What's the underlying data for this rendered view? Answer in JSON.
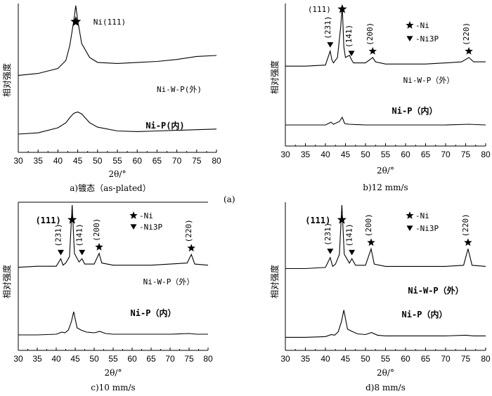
{
  "figure_label": "(a)",
  "chart_data": [
    {
      "type": "line",
      "caption": "a)镀态（as-plated）",
      "xlabel": "2θ/°",
      "ylabel": "相对强度",
      "xlim": [
        30,
        80
      ],
      "xticks": [
        30,
        35,
        40,
        45,
        50,
        55,
        60,
        65,
        70,
        75,
        80
      ],
      "series": [
        {
          "name": "Ni-W-P(外)",
          "x": [
            30,
            35,
            40,
            42,
            43,
            44,
            44.5,
            45,
            46,
            48,
            50,
            55,
            60,
            65,
            70,
            75,
            80
          ],
          "y": [
            0.3,
            0.32,
            0.37,
            0.45,
            0.6,
            0.85,
            1.0,
            0.85,
            0.62,
            0.48,
            0.43,
            0.42,
            0.43,
            0.44,
            0.46,
            0.49,
            0.5
          ]
        },
        {
          "name": "Ni-P(内)",
          "x": [
            30,
            35,
            40,
            42,
            43,
            44,
            45,
            46,
            47,
            48,
            50,
            55,
            60,
            65,
            70,
            75,
            80
          ],
          "y": [
            0.1,
            0.12,
            0.2,
            0.28,
            0.36,
            0.43,
            0.45,
            0.42,
            0.35,
            0.28,
            0.21,
            0.15,
            0.14,
            0.15,
            0.16,
            0.17,
            0.18
          ]
        }
      ],
      "annotations": [
        {
          "text": "Ni(111)",
          "x": 44.5,
          "marker": "star"
        }
      ]
    },
    {
      "type": "line",
      "caption": "b)12 mm/s",
      "xlabel": "2θ/°",
      "ylabel": "相对强度",
      "xlim": [
        30,
        80
      ],
      "xticks": [
        30,
        35,
        40,
        45,
        50,
        55,
        60,
        65,
        70,
        75,
        80
      ],
      "legend": [
        {
          "marker": "star",
          "label": "-Ni"
        },
        {
          "marker": "triangle",
          "label": "-Ni3P"
        }
      ],
      "series": [
        {
          "name": "Ni-W-P（外）",
          "x": [
            30,
            35,
            40,
            41.2,
            41.6,
            42,
            43,
            43.8,
            44.2,
            44.6,
            45,
            46,
            46.5,
            47,
            50,
            51.8,
            52.5,
            55,
            60,
            65,
            70,
            74,
            75.8,
            77,
            80
          ],
          "y": [
            0.44,
            0.44,
            0.45,
            0.58,
            0.5,
            0.47,
            0.52,
            0.8,
            1.0,
            0.62,
            0.52,
            0.54,
            0.5,
            0.47,
            0.47,
            0.52,
            0.48,
            0.46,
            0.46,
            0.46,
            0.47,
            0.48,
            0.52,
            0.48,
            0.48
          ]
        },
        {
          "name": "Ni-P（内）",
          "x": [
            30,
            35,
            40,
            41.4,
            42,
            43.5,
            44.2,
            44.8,
            46,
            50,
            55,
            60,
            65,
            70,
            75.8,
            80
          ],
          "y": [
            0.22,
            0.22,
            0.22,
            0.26,
            0.23,
            0.27,
            0.33,
            0.24,
            0.23,
            0.22,
            0.22,
            0.22,
            0.22,
            0.22,
            0.23,
            0.22
          ]
        }
      ],
      "annotations": [
        {
          "text": "(111)",
          "x": 44.2,
          "marker": "star"
        },
        {
          "text": "(231)",
          "x": 41.2,
          "marker": "triangle"
        },
        {
          "text": "(141)",
          "x": 46.5,
          "marker": "triangle"
        },
        {
          "text": "(200)",
          "x": 51.8,
          "marker": "star"
        },
        {
          "text": "(220)",
          "x": 75.8,
          "marker": "star"
        }
      ]
    },
    {
      "type": "line",
      "caption": "c)10 mm/s",
      "xlabel": "2θ/°",
      "ylabel": "相对强度",
      "xlim": [
        30,
        80
      ],
      "xticks": [
        30,
        35,
        40,
        45,
        50,
        55,
        60,
        65,
        70,
        75,
        80
      ],
      "legend": [
        {
          "marker": "star",
          "label": "-Ni"
        },
        {
          "marker": "triangle",
          "label": "-Ni3P"
        }
      ],
      "series": [
        {
          "name": "Ni-W-P（外）",
          "x": [
            30,
            35,
            36,
            40,
            41.2,
            41.8,
            42.5,
            43.5,
            44.2,
            44.8,
            46,
            46.8,
            47.5,
            50,
            51.3,
            52,
            55,
            60,
            65,
            70,
            74.5,
            75.6,
            76.5,
            80
          ],
          "y": [
            0.42,
            0.43,
            0.43,
            0.43,
            0.5,
            0.44,
            0.46,
            0.52,
            1.0,
            0.55,
            0.47,
            0.5,
            0.45,
            0.45,
            0.55,
            0.46,
            0.44,
            0.44,
            0.44,
            0.45,
            0.46,
            0.54,
            0.45,
            0.44
          ]
        },
        {
          "name": "Ni-P（内）",
          "x": [
            30,
            35,
            40,
            41.5,
            42.3,
            43.2,
            44.0,
            44.6,
            45.5,
            46.5,
            48,
            50,
            51.5,
            53,
            55,
            60,
            65,
            70,
            75,
            77,
            80
          ],
          "y": [
            0.15,
            0.15,
            0.16,
            0.19,
            0.18,
            0.22,
            0.34,
            0.48,
            0.25,
            0.22,
            0.19,
            0.18,
            0.2,
            0.17,
            0.16,
            0.16,
            0.16,
            0.16,
            0.17,
            0.16,
            0.16
          ]
        }
      ],
      "annotations": [
        {
          "text": "(111)",
          "x": 44.2,
          "marker": "star"
        },
        {
          "text": "(231)",
          "x": 41.2,
          "marker": "triangle"
        },
        {
          "text": "(141)",
          "x": 46.8,
          "marker": "triangle"
        },
        {
          "text": "(200)",
          "x": 51.3,
          "marker": "star"
        },
        {
          "text": "(220)",
          "x": 75.6,
          "marker": "star"
        }
      ]
    },
    {
      "type": "line",
      "caption": "d)8 mm/s",
      "xlabel": "2θ/°",
      "ylabel": "相对强度",
      "xlim": [
        30,
        80
      ],
      "xticks": [
        30,
        35,
        40,
        45,
        50,
        55,
        60,
        65,
        70,
        75,
        80
      ],
      "legend": [
        {
          "marker": "star",
          "label": "-Ni"
        },
        {
          "marker": "triangle",
          "label": "-Ni3P"
        }
      ],
      "series": [
        {
          "name": "Ni-W-P（外）",
          "x": [
            30,
            35,
            40,
            41.2,
            41.8,
            42.5,
            43.5,
            44.1,
            44.7,
            46,
            46.6,
            47.5,
            50,
            51.4,
            52.2,
            55,
            60,
            65,
            70,
            74.5,
            75.6,
            76.6,
            80
          ],
          "y": [
            0.42,
            0.42,
            0.43,
            0.52,
            0.44,
            0.46,
            0.55,
            1.0,
            0.55,
            0.47,
            0.51,
            0.45,
            0.45,
            0.6,
            0.46,
            0.44,
            0.44,
            0.44,
            0.44,
            0.45,
            0.6,
            0.45,
            0.44
          ]
        },
        {
          "name": "Ni-P（内）",
          "x": [
            30,
            35,
            40,
            41.5,
            42.3,
            43.2,
            44.0,
            44.6,
            45.5,
            46.5,
            48,
            50,
            51.5,
            53,
            55,
            60,
            65,
            70,
            75,
            77,
            80
          ],
          "y": [
            0.12,
            0.12,
            0.13,
            0.16,
            0.15,
            0.2,
            0.35,
            0.52,
            0.24,
            0.21,
            0.17,
            0.16,
            0.19,
            0.15,
            0.14,
            0.14,
            0.14,
            0.14,
            0.15,
            0.14,
            0.14
          ]
        }
      ],
      "annotations": [
        {
          "text": "(111)",
          "x": 44.1,
          "marker": "star"
        },
        {
          "text": "(231)",
          "x": 41.2,
          "marker": "triangle"
        },
        {
          "text": "(141)",
          "x": 46.6,
          "marker": "triangle"
        },
        {
          "text": "(200)",
          "x": 51.4,
          "marker": "star"
        },
        {
          "text": "(220)",
          "x": 75.6,
          "marker": "star"
        }
      ]
    }
  ]
}
